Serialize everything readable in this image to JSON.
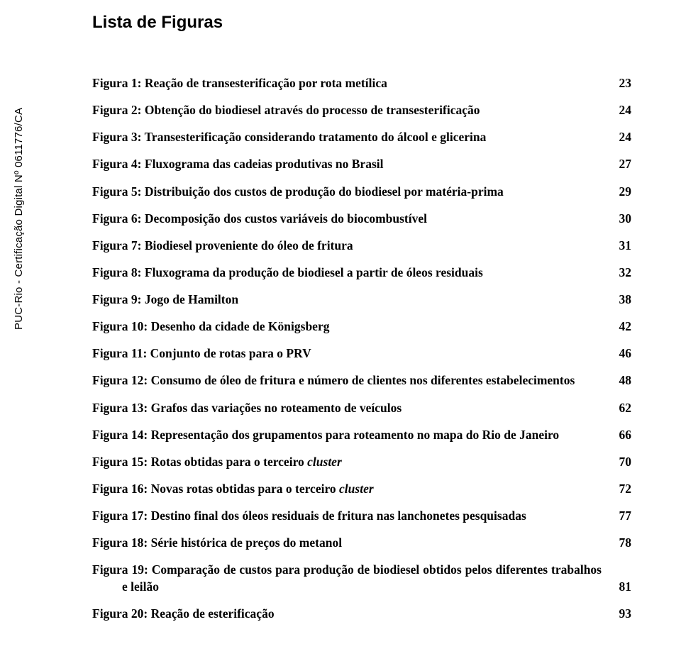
{
  "title": "Lista de Figuras",
  "sidebar": "PUC-Rio - Certificação Digital Nº 0611776/CA",
  "entries": [
    {
      "text": "Figura 1: Reação de transesterificação por rota metílica",
      "page": "23"
    },
    {
      "text": "Figura 2: Obtenção do biodiesel através do processo de transesterificação",
      "page": "24"
    },
    {
      "text": "Figura 3: Transesterificação considerando tratamento do álcool e glicerina",
      "page": "24"
    },
    {
      "text": "Figura 4: Fluxograma das cadeias produtivas no Brasil",
      "page": "27"
    },
    {
      "text": "Figura 5: Distribuição dos custos de produção do biodiesel por matéria-prima",
      "page": "29"
    },
    {
      "text": "Figura 6: Decomposição dos custos variáveis do biocombustível",
      "page": "30"
    },
    {
      "text": "Figura 7: Biodiesel proveniente do óleo de fritura",
      "page": "31"
    },
    {
      "text": "Figura 8: Fluxograma da produção de biodiesel a partir de óleos residuais",
      "page": "32"
    },
    {
      "text": "Figura 9: Jogo de Hamilton",
      "page": "38"
    },
    {
      "text": "Figura 10: Desenho da cidade de Königsberg",
      "page": "42"
    },
    {
      "text": "Figura 11: Conjunto de rotas para o PRV",
      "page": "46"
    },
    {
      "text": "Figura 12: Consumo de óleo de fritura e número de clientes nos diferentes estabelecimentos",
      "page": "48",
      "cont": true
    },
    {
      "text": "Figura 13: Grafos das variações no roteamento de veículos",
      "page": "62"
    },
    {
      "text": "Figura 14: Representação dos grupamentos para roteamento no mapa do Rio de Janeiro",
      "page": "66"
    },
    {
      "text_html": "Figura 15: Rotas obtidas para o terceiro <span class=\"italic\">cluster</span>",
      "page": "70"
    },
    {
      "text_html": "Figura 16: Novas rotas obtidas para o terceiro <span class=\"italic\">cluster</span>",
      "page": "72"
    },
    {
      "text": "Figura 17: Destino final dos óleos residuais de fritura nas lanchonetes pesquisadas",
      "page": "77"
    },
    {
      "text": "Figura 18: Série histórica de preços do metanol",
      "page": "78"
    },
    {
      "text": "Figura 19: Comparação de custos para produção de biodiesel obtidos pelos diferentes trabalhos e leilão",
      "page": "81",
      "cont": true
    },
    {
      "text": "Figura 20: Reação de esterificação",
      "page": "93"
    }
  ]
}
